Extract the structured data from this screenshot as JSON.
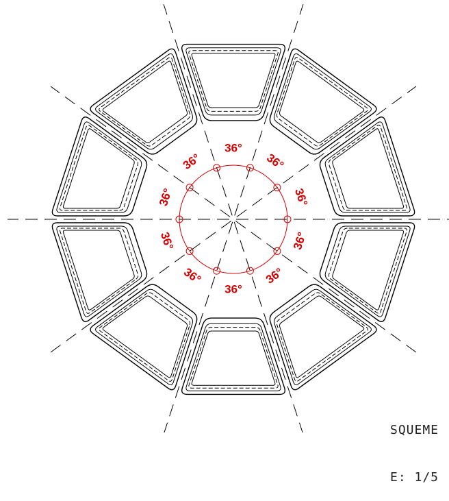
{
  "drawing": {
    "segment_count": 10,
    "angle_labels": [
      "36°",
      "36°",
      "36°",
      "36°",
      "36°",
      "36°",
      "36°",
      "36°",
      "36°",
      "36°"
    ],
    "caption_line1": "SQUEME",
    "caption_line2": "E: 1/5",
    "colors": {
      "line": "#000000",
      "annotation": "#d40000",
      "background": "#ffffff"
    }
  }
}
